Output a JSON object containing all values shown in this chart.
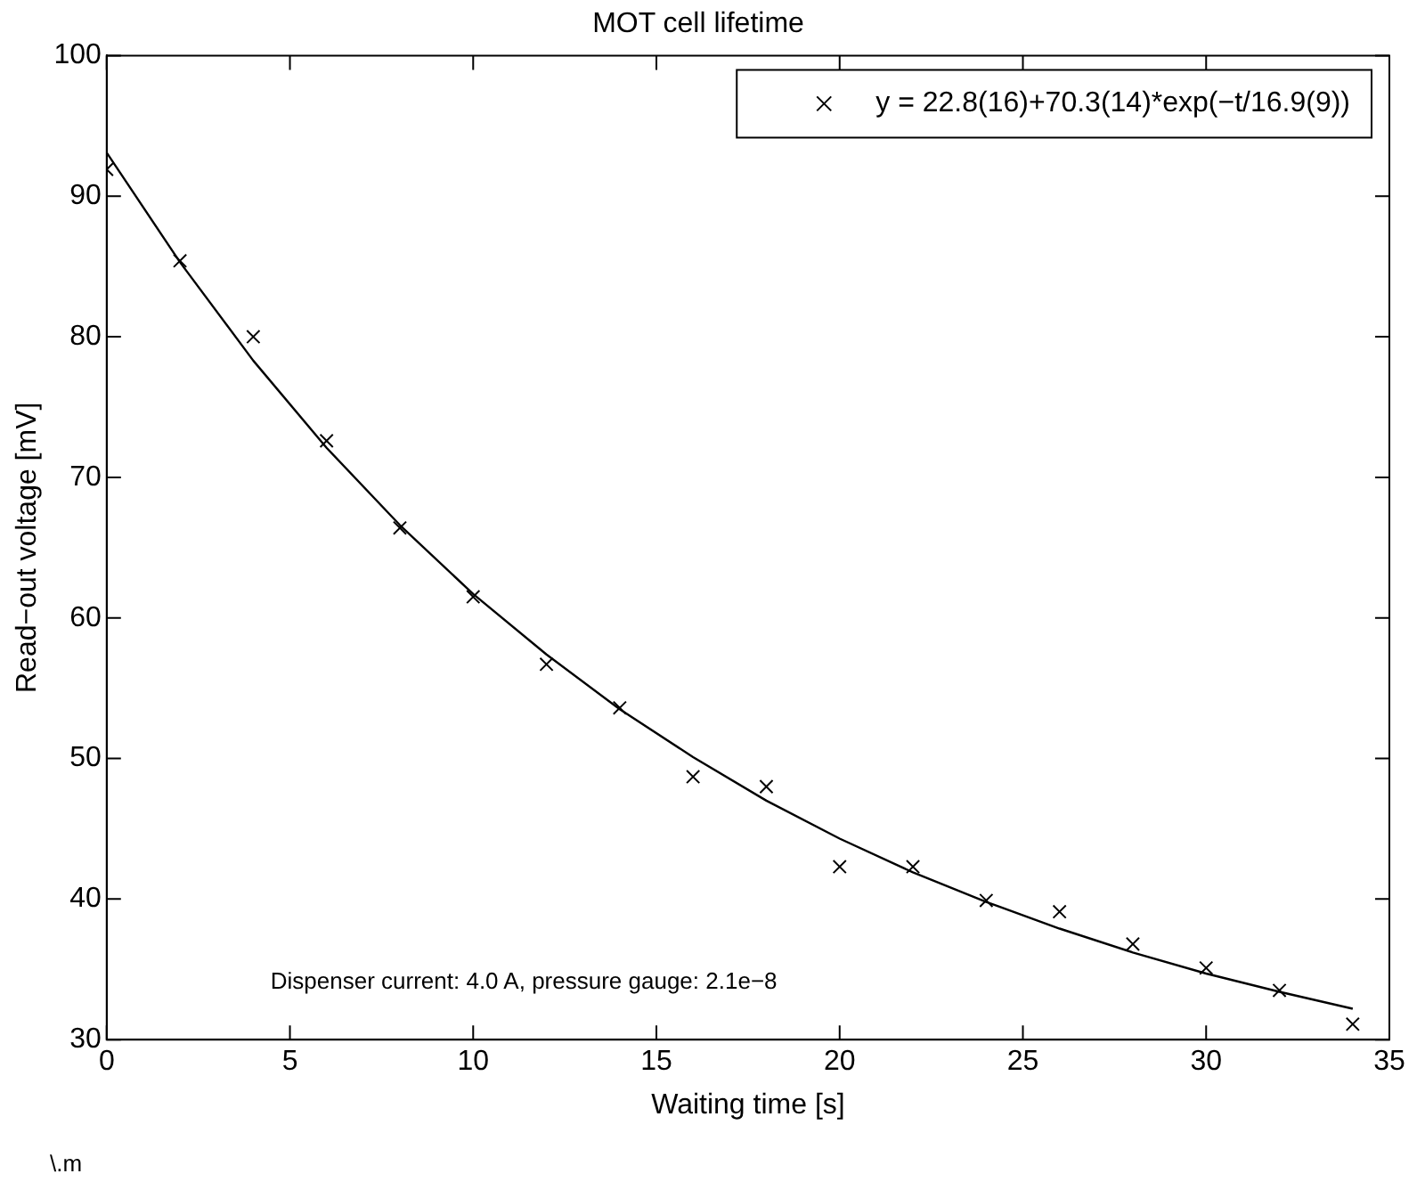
{
  "chart_data": {
    "type": "scatter",
    "title": "MOT cell lifetime",
    "xlabel": "Waiting time [s]",
    "ylabel": "Read−out voltage [mV]",
    "x": [
      0,
      2,
      4,
      6,
      8,
      10,
      12,
      14,
      16,
      18,
      20,
      22,
      24,
      26,
      28,
      30,
      32,
      34
    ],
    "series": [
      {
        "name": "y = 22.8(16)+70.3(14)*exp(−t/16.9(9))",
        "type": "scatter",
        "color": "#000000",
        "marker": "cross",
        "values": [
          91.9,
          85.4,
          80.0,
          72.6,
          66.4,
          61.5,
          56.7,
          53.6,
          48.7,
          48.0,
          42.3,
          42.3,
          39.9,
          39.1,
          36.8,
          35.1,
          33.5,
          31.1
        ]
      },
      {
        "type": "line",
        "color": "#000000",
        "marker": "none",
        "line_style": "solid",
        "x": [
          0,
          2,
          4,
          6,
          8,
          10,
          12,
          14,
          16,
          18,
          20,
          22,
          24,
          26,
          28,
          30,
          32,
          34
        ],
        "values": [
          93.1,
          85.3,
          78.3,
          72.1,
          66.6,
          61.7,
          57.4,
          53.5,
          50.1,
          47.0,
          44.3,
          41.9,
          39.8,
          37.9,
          36.2,
          34.7,
          33.4,
          32.2
        ]
      }
    ],
    "xlim": [
      0,
      35
    ],
    "xticks": [
      0,
      5,
      10,
      15,
      20,
      25,
      30,
      35
    ],
    "ylim": [
      30,
      100
    ],
    "yticks": [
      30,
      40,
      50,
      60,
      70,
      80,
      90,
      100
    ],
    "grid": false,
    "legend": "top right",
    "annotations": [
      "Dispenser current: 4.0 A, pressure gauge: 2.1e−8",
      "\\.m"
    ]
  }
}
